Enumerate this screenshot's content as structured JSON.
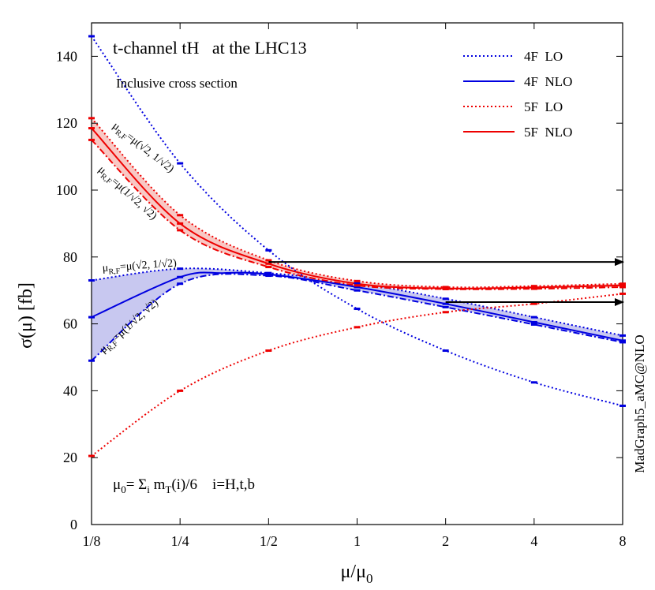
{
  "chart_data": {
    "type": "line",
    "title": "t-channel tH   at the LHC13",
    "subtitle": "Inclusive cross section",
    "xlabel": "μ/μ₀",
    "ylabel": "σ(μ)   [fb]",
    "xscale": "log2",
    "x_ticks": [
      {
        "value": 0.125,
        "label": "1/8"
      },
      {
        "value": 0.25,
        "label": "1/4"
      },
      {
        "value": 0.5,
        "label": "1/2"
      },
      {
        "value": 1,
        "label": "1"
      },
      {
        "value": 2,
        "label": "2"
      },
      {
        "value": 4,
        "label": "4"
      },
      {
        "value": 8,
        "label": "8"
      }
    ],
    "y_ticks": [
      0,
      20,
      40,
      60,
      80,
      100,
      120,
      140
    ],
    "ylim": [
      0,
      150
    ],
    "xlim": [
      0.125,
      8
    ],
    "legend_position": "top-right",
    "series": [
      {
        "name": "4F  LO",
        "color": "#0000e0",
        "style": "dotted",
        "x": [
          0.125,
          0.25,
          0.5,
          1,
          2,
          4,
          8
        ],
        "y": [
          146,
          108,
          82,
          64.5,
          52,
          42.5,
          35.5
        ]
      },
      {
        "name": "4F  NLO",
        "color": "#0000e0",
        "style": "solid",
        "x": [
          0.125,
          0.25,
          0.35,
          0.5,
          1,
          2,
          4,
          8
        ],
        "y": [
          62,
          74,
          75.2,
          74.8,
          71,
          66,
          60.5,
          55
        ]
      },
      {
        "name": "5F  LO",
        "color": "#ee0000",
        "style": "dotted",
        "x": [
          0.125,
          0.25,
          0.5,
          1,
          2,
          4,
          8
        ],
        "y": [
          20.5,
          40,
          52,
          59,
          63.5,
          66,
          69
        ]
      },
      {
        "name": "5F  NLO",
        "color": "#ee0000",
        "style": "solid",
        "x": [
          0.125,
          0.25,
          0.5,
          1,
          2,
          4,
          8
        ],
        "y": [
          118.5,
          90,
          78,
          72,
          70.6,
          70.9,
          71.5
        ]
      }
    ],
    "bands": [
      {
        "series": "4F  NLO",
        "color": "#0000e0",
        "x": [
          0.125,
          0.25,
          0.5,
          1,
          2,
          4,
          8
        ],
        "upper": [
          73,
          76.5,
          75.2,
          72.2,
          67.5,
          62,
          56.5
        ],
        "lower": [
          49,
          72,
          74.4,
          70,
          65,
          59.8,
          54.5
        ]
      },
      {
        "series": "5F  NLO",
        "color": "#ee0000",
        "x": [
          0.125,
          0.25,
          0.5,
          1,
          2,
          4,
          8
        ],
        "upper": [
          121.5,
          92.5,
          79,
          72.8,
          71,
          71.3,
          72
        ]
      },
      {
        "series": "5F  NLO",
        "color": "#ee0000",
        "x": [
          0.125,
          0.25,
          0.5,
          1,
          2,
          4,
          8
        ],
        "lower": [
          115,
          88,
          77,
          71.5,
          70.4,
          70.5,
          71
        ]
      }
    ],
    "arrows": [
      {
        "from_x": 0.5,
        "to_x": 8,
        "y": 78.5
      },
      {
        "from_x": 2,
        "to_x": 8,
        "y": 66.5
      }
    ],
    "annotations": {
      "red_upper": "μR,F=μ(√2, 1/√2)",
      "red_lower": "μR,F=μ(1/√2, √2)",
      "blue_upper": "μR,F=μ(√2, 1/√2)",
      "blue_lower": "μR,F=μ(1/√2, √2)",
      "mu0_def": "μ0= Σi mT(i)/6    i=H,t,b",
      "side_label": "MadGraph5_aMC@NLO"
    }
  }
}
